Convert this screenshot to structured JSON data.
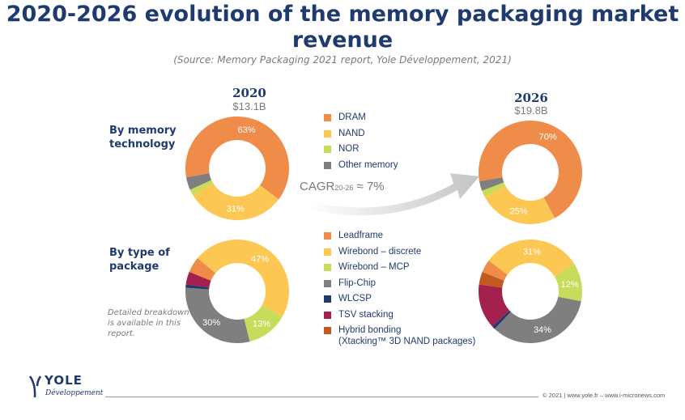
{
  "title": "2020-2026 evolution of the memory packaging market revenue",
  "source": "(Source: Memory Packaging 2021 report, Yole Développement, 2021)",
  "years": {
    "y2020": {
      "year": "2020",
      "total": "$13.1B"
    },
    "y2026": {
      "year": "2026",
      "total": "$19.8B"
    }
  },
  "row_labels": {
    "technology": "By memory technology",
    "package": "By type of package"
  },
  "note": "Detailed breakdown is available in this report.",
  "cagr": {
    "prefix": "CAGR",
    "subscript": "20-26",
    "suffix": " ≈ 7%"
  },
  "legend_technology": [
    {
      "label": "DRAM",
      "color": "#f08c4a"
    },
    {
      "label": "NAND",
      "color": "#fcc853"
    },
    {
      "label": "NOR",
      "color": "#c7dc5a"
    },
    {
      "label": "Other memory",
      "color": "#7f7f7f"
    }
  ],
  "legend_package": [
    {
      "label": "Leadframe",
      "color": "#f08c4a"
    },
    {
      "label": "Wirebond – discrete",
      "color": "#fcc853"
    },
    {
      "label": "Wirebond – MCP",
      "color": "#c7dc5a"
    },
    {
      "label": "Flip-Chip",
      "color": "#7f7f7f"
    },
    {
      "label": "WLCSP",
      "color": "#1f3a6e"
    },
    {
      "label": "TSV stacking",
      "color": "#a3204f"
    },
    {
      "label": "Hybrid bonding",
      "label2": "(Xtacking™ 3D NAND packages)",
      "color": "#c05a1e"
    }
  ],
  "footer": "© 2021 | www.yole.fr – www.i-micronews.com",
  "logo": {
    "brand": "YOLE",
    "sub": "Développement"
  },
  "chart_data": [
    {
      "type": "pie",
      "title": "2020",
      "subtitle": "$13.1B",
      "group": "By memory technology",
      "categories": [
        "DRAM",
        "NAND",
        "NOR",
        "Other memory"
      ],
      "values": [
        63,
        31,
        2,
        4
      ],
      "labels": [
        "63%",
        "31%",
        "",
        ""
      ],
      "colors": [
        "#f08c4a",
        "#fcc853",
        "#c7dc5a",
        "#7f7f7f"
      ]
    },
    {
      "type": "pie",
      "title": "2026",
      "subtitle": "$19.8B",
      "group": "By memory technology",
      "categories": [
        "DRAM",
        "NAND",
        "NOR",
        "Other memory"
      ],
      "values": [
        70,
        25,
        2,
        3
      ],
      "labels": [
        "70%",
        "25%",
        "",
        ""
      ],
      "colors": [
        "#f08c4a",
        "#fcc853",
        "#c7dc5a",
        "#7f7f7f"
      ]
    },
    {
      "type": "pie",
      "title": "2020",
      "group": "By type of package",
      "categories": [
        "Leadframe",
        "Wirebond – discrete",
        "Wirebond – MCP",
        "Flip-Chip",
        "WLCSP",
        "TSV stacking",
        "Hybrid bonding"
      ],
      "values": [
        5,
        47,
        13,
        30,
        1,
        4,
        0
      ],
      "labels": [
        "",
        "47%",
        "13%",
        "30%",
        "",
        "",
        ""
      ],
      "colors": [
        "#f08c4a",
        "#fcc853",
        "#c7dc5a",
        "#7f7f7f",
        "#1f3a6e",
        "#a3204f",
        "#c05a1e"
      ]
    },
    {
      "type": "pie",
      "title": "2026",
      "group": "By type of package",
      "categories": [
        "Leadframe",
        "Wirebond – discrete",
        "Wirebond – MCP",
        "Flip-Chip",
        "WLCSP",
        "TSV stacking",
        "Hybrid bonding"
      ],
      "values": [
        4,
        31,
        12,
        34,
        1,
        14,
        4
      ],
      "labels": [
        "",
        "31%",
        "12%",
        "34%",
        "",
        "",
        ""
      ],
      "colors": [
        "#f08c4a",
        "#fcc853",
        "#c7dc5a",
        "#7f7f7f",
        "#1f3a6e",
        "#a3204f",
        "#c05a1e"
      ]
    }
  ]
}
